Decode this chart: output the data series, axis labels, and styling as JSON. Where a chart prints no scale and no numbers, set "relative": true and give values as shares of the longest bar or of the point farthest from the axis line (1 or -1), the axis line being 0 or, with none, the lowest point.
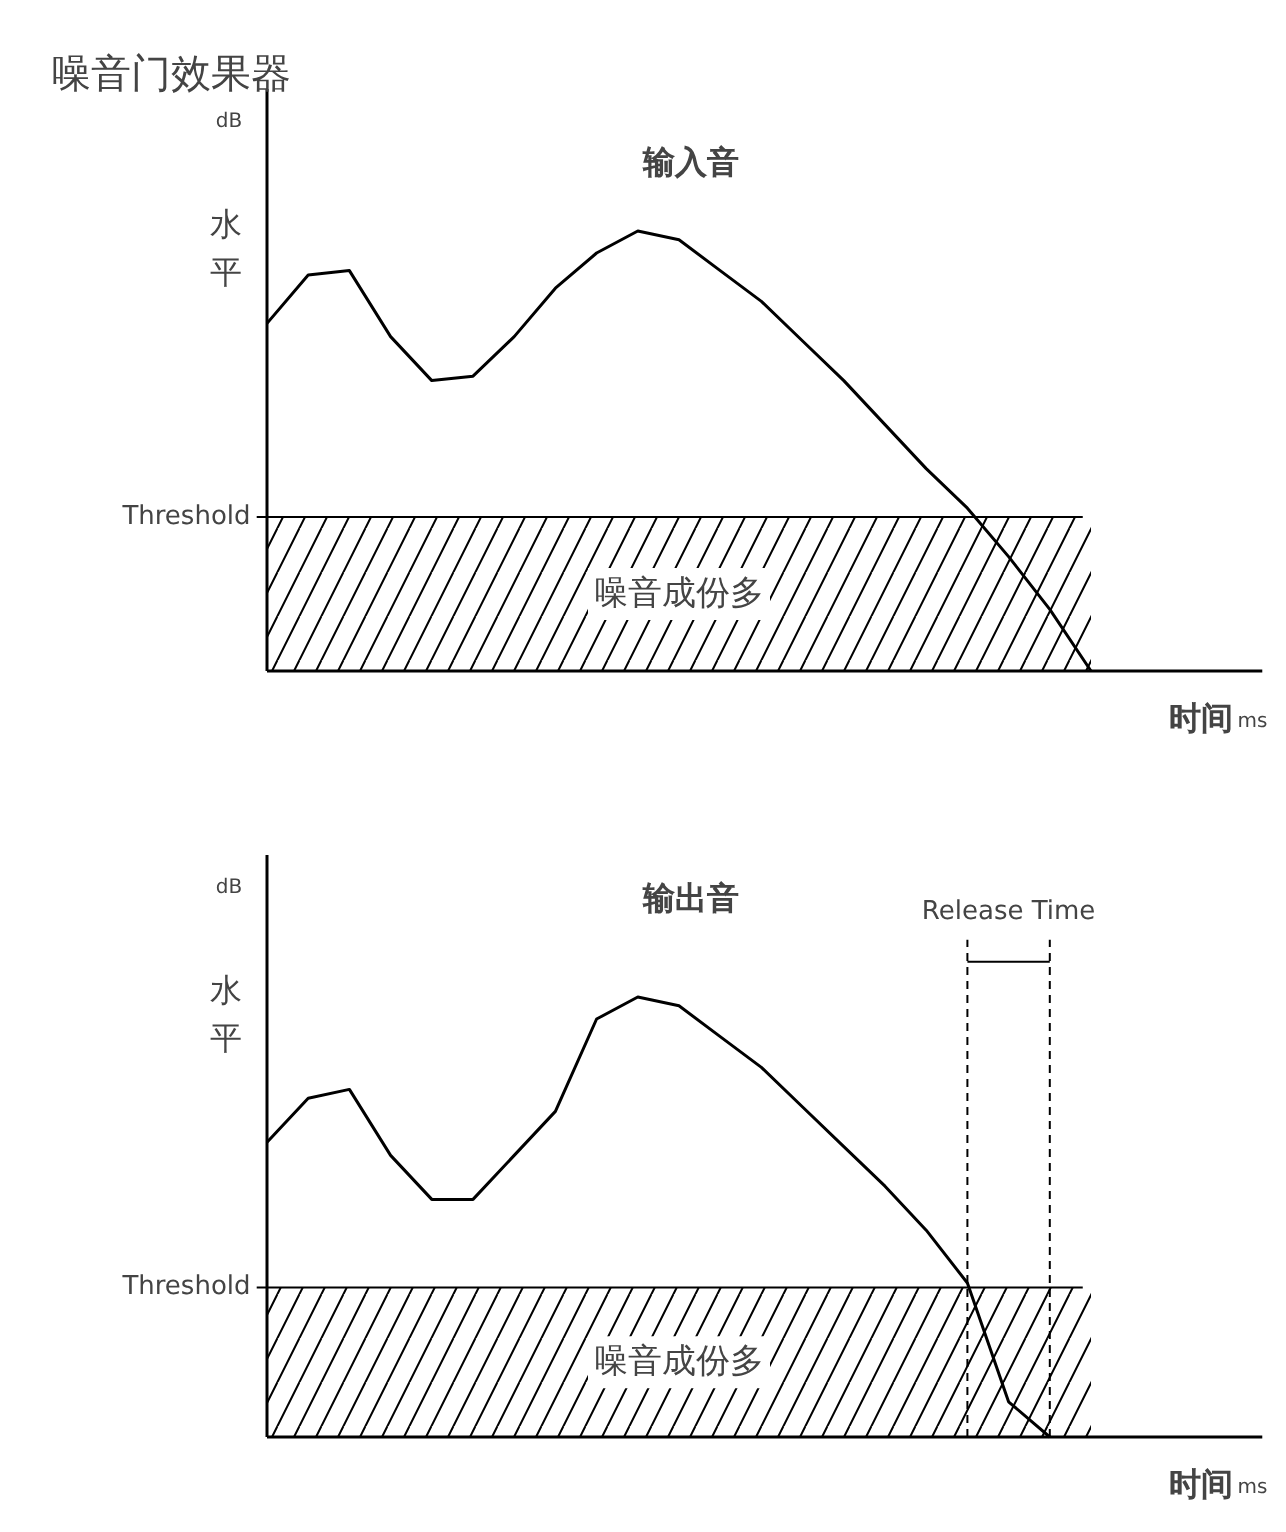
{
  "chart_data": [
    {
      "type": "line",
      "title": "噪音门效果器",
      "subtitle": "输入音",
      "xlabel": "时间",
      "ylabel": "水平",
      "annotations": [
        "dB",
        "ms"
      ],
      "relative": true,
      "grid": false,
      "categories": [
        null,
        null,
        null,
        null,
        null,
        null,
        null,
        null,
        null,
        null,
        null,
        null,
        null,
        null,
        null,
        null,
        null,
        null,
        null,
        null,
        null
      ],
      "series": [
        {
          "color": "#000000",
          "values": [
            0.79,
            0.9,
            0.91,
            0.76,
            0.66,
            0.67,
            0.76,
            0.87,
            0.95,
            1.0,
            0.98,
            0.91,
            0.84,
            0.75,
            0.66,
            0.56,
            0.46,
            0.37,
            0.26,
            0.14,
            0.0
          ]
        }
      ],
      "ref_lines": [
        {
          "axis": "y",
          "value": 0.35,
          "label": "Threshold"
        }
      ],
      "bands": [
        {
          "axis": "y",
          "from": 0,
          "to": 0.35,
          "label": "噪音成份多"
        }
      ]
    },
    {
      "type": "line",
      "title": "输出音",
      "xlabel": "时间",
      "ylabel": "水平",
      "annotations": [
        "dB",
        "ms",
        "Release Time"
      ],
      "relative": true,
      "grid": false,
      "categories": [
        null,
        null,
        null,
        null,
        null,
        null,
        null,
        null,
        null,
        null,
        null,
        null,
        null,
        null,
        null,
        null,
        null,
        null,
        null,
        null,
        null
      ],
      "series": [
        {
          "color": "#000000",
          "values": [
            0.67,
            0.77,
            0.79,
            0.64,
            0.54,
            0.54,
            0.64,
            0.74,
            0.95,
            1.0,
            0.98,
            0.91,
            0.84,
            0.75,
            0.66,
            0.57,
            0.47,
            0.35,
            0.08,
            0.0,
            null
          ]
        }
      ],
      "ref_lines": [
        {
          "axis": "y",
          "value": 0.34,
          "label": "Threshold"
        }
      ],
      "bands": [
        {
          "axis": "y",
          "from": 0,
          "to": 0.34,
          "label": "噪音成份多"
        }
      ]
    }
  ]
}
